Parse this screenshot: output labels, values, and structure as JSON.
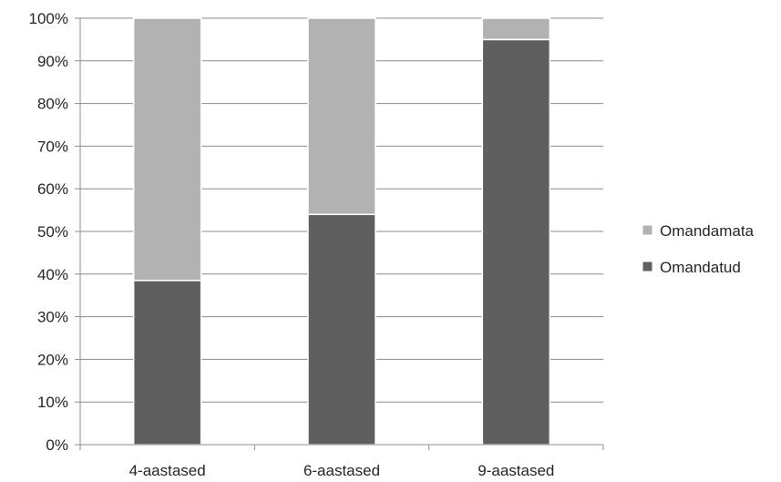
{
  "chart_data": {
    "type": "bar",
    "stacked": true,
    "percent_stacked": true,
    "categories": [
      "4-aastased",
      "6-aastased",
      "9-aastased"
    ],
    "series": [
      {
        "name": "Omandatud",
        "values": [
          38.5,
          54,
          95
        ],
        "color": "#5f5f5f"
      },
      {
        "name": "Omandamata",
        "values": [
          61.5,
          46,
          5
        ],
        "color": "#b2b2b2"
      }
    ],
    "y_ticks": [
      "0%",
      "10%",
      "20%",
      "30%",
      "40%",
      "50%",
      "60%",
      "70%",
      "80%",
      "90%",
      "100%"
    ],
    "ylim": [
      0,
      100
    ],
    "grid": true,
    "legend_position": "right",
    "legend_order": [
      "Omandamata",
      "Omandatud"
    ]
  }
}
